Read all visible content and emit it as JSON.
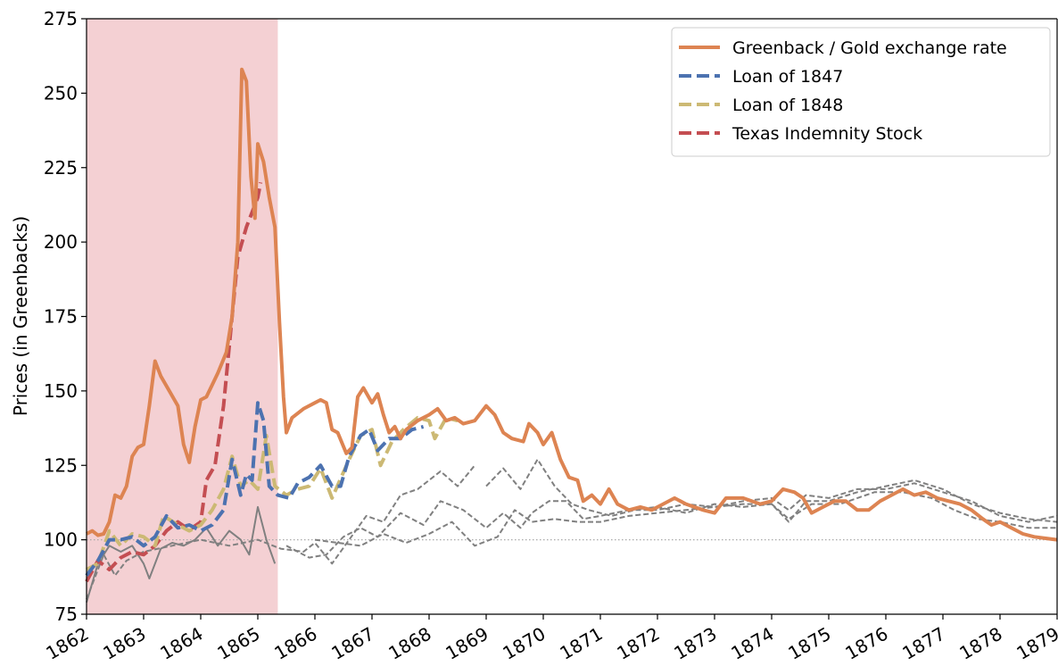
{
  "chart_data": {
    "type": "line",
    "ylabel": "Prices (in Greenbacks)",
    "xlim": [
      1862,
      1879
    ],
    "xticks": [
      1862,
      1863,
      1864,
      1865,
      1866,
      1867,
      1868,
      1869,
      1870,
      1871,
      1872,
      1873,
      1874,
      1875,
      1876,
      1877,
      1878,
      1879
    ],
    "ylim": [
      75,
      275
    ],
    "yticks": [
      75,
      100,
      125,
      150,
      175,
      200,
      225,
      250,
      275
    ],
    "highlight_span": [
      1862,
      1865.35
    ],
    "highlight_color": "#f4d0d3",
    "hline": 100,
    "legend": "upper right",
    "series": [
      {
        "name": "Greenback / Gold exchange rate",
        "color": "#dd8452",
        "dash": false,
        "width": 4,
        "x": [
          1862.0,
          1862.1,
          1862.2,
          1862.3,
          1862.4,
          1862.5,
          1862.6,
          1862.7,
          1862.8,
          1862.9,
          1863.0,
          1863.1,
          1863.2,
          1863.3,
          1863.45,
          1863.6,
          1863.7,
          1863.8,
          1863.9,
          1864.0,
          1864.1,
          1864.2,
          1864.3,
          1864.45,
          1864.55,
          1864.65,
          1864.72,
          1864.8,
          1864.88,
          1864.95,
          1865.0,
          1865.1,
          1865.2,
          1865.3,
          1865.38,
          1865.45,
          1865.5,
          1865.6,
          1865.8,
          1866.0,
          1866.1,
          1866.2,
          1866.3,
          1866.4,
          1866.55,
          1866.65,
          1866.75,
          1866.85,
          1867.0,
          1867.1,
          1867.2,
          1867.3,
          1867.4,
          1867.5,
          1867.6,
          1867.8,
          1868.0,
          1868.15,
          1868.3,
          1868.45,
          1868.6,
          1868.8,
          1869.0,
          1869.15,
          1869.3,
          1869.45,
          1869.65,
          1869.75,
          1869.9,
          1870.0,
          1870.15,
          1870.3,
          1870.45,
          1870.6,
          1870.7,
          1870.85,
          1871.0,
          1871.15,
          1871.3,
          1871.5,
          1871.7,
          1871.9,
          1872.1,
          1872.3,
          1872.5,
          1872.8,
          1873.0,
          1873.2,
          1873.5,
          1873.8,
          1874.0,
          1874.2,
          1874.4,
          1874.55,
          1874.7,
          1874.9,
          1875.1,
          1875.3,
          1875.5,
          1875.7,
          1875.9,
          1876.1,
          1876.3,
          1876.5,
          1876.7,
          1876.9,
          1877.1,
          1877.3,
          1877.5,
          1877.7,
          1877.85,
          1878.0,
          1878.2,
          1878.4,
          1878.6,
          1878.8,
          1879.0
        ],
        "values": [
          102,
          103,
          101.5,
          102,
          106,
          115,
          114,
          118,
          128,
          131,
          132,
          145,
          160,
          155,
          150,
          145,
          132,
          126,
          138,
          147,
          148,
          152,
          156,
          163,
          175,
          200,
          258,
          254,
          222,
          208,
          233,
          227,
          215,
          205,
          173,
          148,
          136,
          141,
          144,
          146,
          147,
          146,
          137,
          136,
          129,
          131,
          148,
          151,
          146,
          149,
          142,
          136,
          138,
          134,
          137,
          140,
          142,
          144,
          140,
          141,
          139,
          140,
          145,
          142,
          136,
          134,
          133,
          139,
          136,
          132,
          136,
          127,
          121,
          120,
          113,
          115,
          112,
          117,
          112,
          110,
          111,
          110,
          112,
          114,
          112,
          110,
          109,
          114,
          114,
          112,
          113,
          117,
          116,
          114,
          109,
          111,
          113,
          113,
          110,
          110,
          113,
          115,
          117,
          115,
          116,
          114,
          113,
          112,
          110,
          107,
          105,
          106,
          104,
          102,
          101,
          100.5,
          100
        ]
      },
      {
        "name": "Loan of 1847",
        "color": "#4c72b0",
        "dash": true,
        "width": 4,
        "x": [
          1862.0,
          1862.2,
          1862.4,
          1862.6,
          1862.8,
          1863.0,
          1863.2,
          1863.4,
          1863.6,
          1863.8,
          1864.0,
          1864.2,
          1864.4,
          1864.55,
          1864.7,
          1864.8,
          1864.9,
          1865.0,
          1865.1,
          1865.2,
          1865.35,
          1865.55,
          1865.7,
          1865.9,
          1866.1,
          1866.3,
          1866.45,
          1866.6,
          1866.8,
          1866.95,
          1867.1,
          1867.3,
          1867.5,
          1867.7,
          1867.9
        ],
        "values": [
          88,
          93,
          100,
          100,
          101,
          98,
          101,
          108,
          104,
          105,
          103,
          105,
          110,
          127,
          115,
          122,
          120,
          146,
          140,
          118,
          115,
          114,
          119,
          121,
          125,
          118,
          118,
          128,
          135,
          137,
          130,
          134,
          134,
          137,
          138
        ]
      },
      {
        "name": "Loan of 1848",
        "color": "#ccb974",
        "dash": true,
        "width": 4,
        "x": [
          1862.0,
          1862.2,
          1862.4,
          1862.6,
          1862.8,
          1863.0,
          1863.2,
          1863.35,
          1863.6,
          1863.8,
          1864.0,
          1864.2,
          1864.4,
          1864.55,
          1864.7,
          1864.85,
          1865.0,
          1865.15,
          1865.3,
          1865.5,
          1865.7,
          1865.9,
          1866.1,
          1866.3,
          1866.6,
          1866.8,
          1867.0,
          1867.15,
          1867.35,
          1867.55,
          1867.8,
          1868.0,
          1868.1,
          1868.3,
          1868.5
        ],
        "values": [
          90,
          92,
          103,
          98,
          102,
          101,
          98,
          108,
          105,
          103,
          105,
          110,
          117,
          128,
          118,
          120,
          117,
          135,
          118,
          115,
          117,
          118,
          124,
          114,
          127,
          135,
          137,
          125,
          133,
          137,
          141,
          140,
          134,
          141,
          140
        ]
      },
      {
        "name": "Texas Indemnity Stock",
        "color": "#c44e52",
        "dash": true,
        "width": 4,
        "x": [
          1862.0,
          1862.2,
          1862.4,
          1862.6,
          1862.8,
          1863.0,
          1863.2,
          1863.4,
          1863.6,
          1863.75,
          1863.85,
          1864.0,
          1864.1,
          1864.25,
          1864.4,
          1864.55,
          1864.65,
          1864.8,
          1865.0,
          1865.05
        ],
        "values": [
          86,
          93,
          90,
          94,
          96,
          95,
          98,
          103,
          106,
          104,
          104,
          106,
          120,
          125,
          145,
          175,
          195,
          205,
          215,
          220
        ]
      },
      {
        "color": "#808080",
        "dash": false,
        "width": 2,
        "x": [
          1862.0,
          1862.2,
          1862.4,
          1862.6,
          1862.8,
          1863.0,
          1863.1,
          1863.3,
          1863.5,
          1863.7,
          1863.9,
          1864.1,
          1864.3,
          1864.5,
          1864.7,
          1864.85,
          1865.0,
          1865.15,
          1865.3
        ],
        "values": [
          79,
          92,
          98,
          96,
          98,
          92,
          87,
          97,
          99,
          98,
          100,
          104,
          98,
          103,
          100,
          95,
          111,
          100,
          92
        ]
      },
      {
        "color": "#808080",
        "dash": true,
        "width": 2,
        "x": [
          1862.0,
          1862.3,
          1862.5,
          1862.7,
          1863.0,
          1863.5,
          1864.0,
          1864.5,
          1865.0,
          1865.4,
          1865.8,
          1866.0,
          1866.3,
          1866.6,
          1866.9,
          1867.2,
          1867.5,
          1867.8,
          1868.2,
          1868.5,
          1868.8,
          1868.9,
          1869.0,
          1869.3,
          1869.6,
          1869.9,
          1870.2,
          1870.5,
          1870.8,
          1871.2,
          1871.6,
          1872.0,
          1872.5,
          1873.0,
          1873.5,
          1874.0,
          1874.3,
          1874.6,
          1875.0,
          1875.5,
          1876.0,
          1876.5,
          1877.0,
          1877.5,
          1878.0,
          1878.5,
          1879.0
        ],
        "values": [
          80,
          95,
          88,
          93,
          96,
          98,
          100,
          98,
          100,
          97,
          96,
          99,
          92,
          100,
          108,
          106,
          115,
          117,
          123,
          118,
          125,
          null,
          118,
          124,
          117,
          127,
          118,
          112,
          110,
          108,
          110,
          110,
          112,
          111,
          113,
          114,
          110,
          115,
          114,
          117,
          117,
          119,
          116,
          113,
          108,
          106,
          108
        ]
      },
      {
        "color": "#808080",
        "dash": true,
        "width": 2,
        "x": [
          1865.5,
          1865.9,
          1866.2,
          1866.5,
          1866.8,
          1867.1,
          1867.5,
          1867.9,
          1868.2,
          1868.6,
          1869.0,
          1869.3,
          1869.6,
          1869.8,
          1870.1,
          1870.4,
          1870.7,
          1871.0,
          1871.5,
          1872.0,
          1872.5,
          1873.0,
          1873.5,
          1874.0,
          1874.3,
          1874.6,
          1875.0,
          1875.5,
          1876.0,
          1876.5,
          1877.0,
          1877.5,
          1878.0,
          1878.5,
          1879.0
        ],
        "values": [
          98,
          94,
          95,
          101,
          104,
          101,
          109,
          105,
          113,
          110,
          104,
          109,
          104,
          109,
          113,
          113,
          107,
          108,
          110,
          111,
          109,
          112,
          111,
          112,
          106,
          113,
          113,
          116,
          118,
          120,
          117,
          112,
          109,
          107,
          106
        ]
      },
      {
        "color": "#808080",
        "dash": true,
        "width": 2,
        "x": [
          1866.0,
          1866.4,
          1866.8,
          1867.2,
          1867.6,
          1868.0,
          1868.4,
          1868.8,
          1869.2,
          1869.5,
          1869.8,
          1870.2,
          1870.6,
          1871.0,
          1871.5,
          1872.0,
          1872.5,
          1873.0,
          1873.5,
          1874.0,
          1874.3,
          1874.7,
          1875.2,
          1875.8,
          1876.3,
          1876.8,
          1877.2,
          1877.6,
          1878.0,
          1878.5,
          1879.0
        ],
        "values": [
          100,
          99,
          98,
          102,
          99,
          102,
          106,
          98,
          101,
          110,
          106,
          107,
          106,
          106,
          108,
          109,
          110,
          111,
          112,
          112,
          107,
          112,
          112,
          116,
          116,
          114,
          110,
          107,
          106,
          104,
          104
        ]
      }
    ]
  }
}
